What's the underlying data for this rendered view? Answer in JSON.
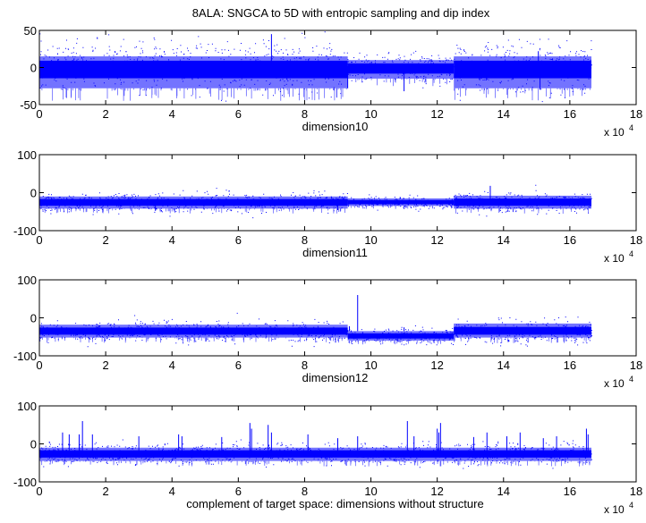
{
  "figure": {
    "title": "8ALA: SNGCA to 5D with entropic sampling and dip index"
  },
  "chart_data": [
    {
      "type": "scatter",
      "xlabel": "dimension10",
      "x_multiplier": "x 10",
      "x_multiplier_exp": "4",
      "xlim": [
        0,
        18
      ],
      "ylim": [
        -50,
        50
      ],
      "xticks": [
        "0",
        "2",
        "4",
        "6",
        "8",
        "10",
        "12",
        "14",
        "16",
        "18"
      ],
      "yticks": [
        "-50",
        "0",
        "50"
      ],
      "grid": false,
      "color": "#0000ff",
      "band_segments": [
        {
          "x0": 0.0,
          "x1": 9.3,
          "center": 2,
          "upper": 15,
          "lower": -28
        },
        {
          "x0": 9.3,
          "x1": 12.5,
          "center": 0,
          "upper": 10,
          "lower": -15
        },
        {
          "x0": 12.5,
          "x1": 16.65,
          "center": 2,
          "upper": 15,
          "lower": -28
        }
      ],
      "spikes": [
        [
          7.0,
          45
        ],
        [
          15.05,
          22
        ],
        [
          15.1,
          -30
        ],
        [
          11.0,
          -32
        ],
        [
          9.3,
          -28
        ]
      ]
    },
    {
      "type": "scatter",
      "xlabel": "dimension11",
      "x_multiplier": "x 10",
      "x_multiplier_exp": "4",
      "xlim": [
        0,
        18
      ],
      "ylim": [
        -100,
        100
      ],
      "xticks": [
        "0",
        "2",
        "4",
        "6",
        "8",
        "10",
        "12",
        "14",
        "16",
        "18"
      ],
      "yticks": [
        "-100",
        "0",
        "100"
      ],
      "grid": false,
      "color": "#0000ff",
      "band_segments": [
        {
          "x0": 0.0,
          "x1": 9.3,
          "center": -25,
          "upper": -10,
          "lower": -42
        },
        {
          "x0": 9.3,
          "x1": 12.5,
          "center": -25,
          "upper": -15,
          "lower": -35
        },
        {
          "x0": 12.5,
          "x1": 16.65,
          "center": -25,
          "upper": -8,
          "lower": -42
        }
      ],
      "spikes": [
        [
          13.6,
          18
        ],
        [
          3.5,
          -48
        ],
        [
          9.0,
          -46
        ]
      ]
    },
    {
      "type": "scatter",
      "xlabel": "dimension12",
      "x_multiplier": "x 10",
      "x_multiplier_exp": "4",
      "xlim": [
        0,
        18
      ],
      "ylim": [
        -100,
        100
      ],
      "xticks": [
        "0",
        "2",
        "4",
        "6",
        "8",
        "10",
        "12",
        "14",
        "16",
        "18"
      ],
      "yticks": [
        "-100",
        "0",
        "100"
      ],
      "grid": false,
      "color": "#0000ff",
      "band_segments": [
        {
          "x0": 0.0,
          "x1": 9.3,
          "center": -35,
          "upper": -18,
          "lower": -52
        },
        {
          "x0": 9.3,
          "x1": 12.5,
          "center": -48,
          "upper": -35,
          "lower": -60
        },
        {
          "x0": 12.5,
          "x1": 16.65,
          "center": -35,
          "upper": -15,
          "lower": -52
        }
      ],
      "spikes": [
        [
          9.6,
          60
        ],
        [
          11.0,
          -25
        ],
        [
          9.35,
          -22
        ]
      ]
    },
    {
      "type": "scatter",
      "xlabel": "complement of target space: dimensions without structure",
      "x_multiplier": "x 10",
      "x_multiplier_exp": "4",
      "xlim": [
        0,
        18
      ],
      "ylim": [
        -100,
        100
      ],
      "xticks": [
        "0",
        "2",
        "4",
        "6",
        "8",
        "10",
        "12",
        "14",
        "16",
        "18"
      ],
      "yticks": [
        "-100",
        "0",
        "100"
      ],
      "grid": false,
      "color": "#0000ff",
      "band_segments": [
        {
          "x0": 0.0,
          "x1": 16.65,
          "center": -25,
          "upper": -10,
          "lower": -45
        }
      ],
      "spikes": [
        [
          0.7,
          30
        ],
        [
          0.9,
          25
        ],
        [
          1.2,
          25
        ],
        [
          1.3,
          60
        ],
        [
          1.6,
          25
        ],
        [
          3.0,
          20
        ],
        [
          4.2,
          25
        ],
        [
          4.3,
          20
        ],
        [
          5.5,
          18
        ],
        [
          6.35,
          55
        ],
        [
          6.4,
          40
        ],
        [
          6.9,
          50
        ],
        [
          7.0,
          30
        ],
        [
          8.1,
          25
        ],
        [
          9.0,
          15
        ],
        [
          9.6,
          20
        ],
        [
          11.1,
          60
        ],
        [
          11.3,
          20
        ],
        [
          12.0,
          40
        ],
        [
          12.05,
          30
        ],
        [
          12.1,
          55
        ],
        [
          13.1,
          18
        ],
        [
          13.5,
          30
        ],
        [
          14.1,
          20
        ],
        [
          14.5,
          30
        ],
        [
          15.2,
          15
        ],
        [
          15.6,
          20
        ],
        [
          16.5,
          40
        ],
        [
          16.55,
          25
        ]
      ]
    }
  ]
}
